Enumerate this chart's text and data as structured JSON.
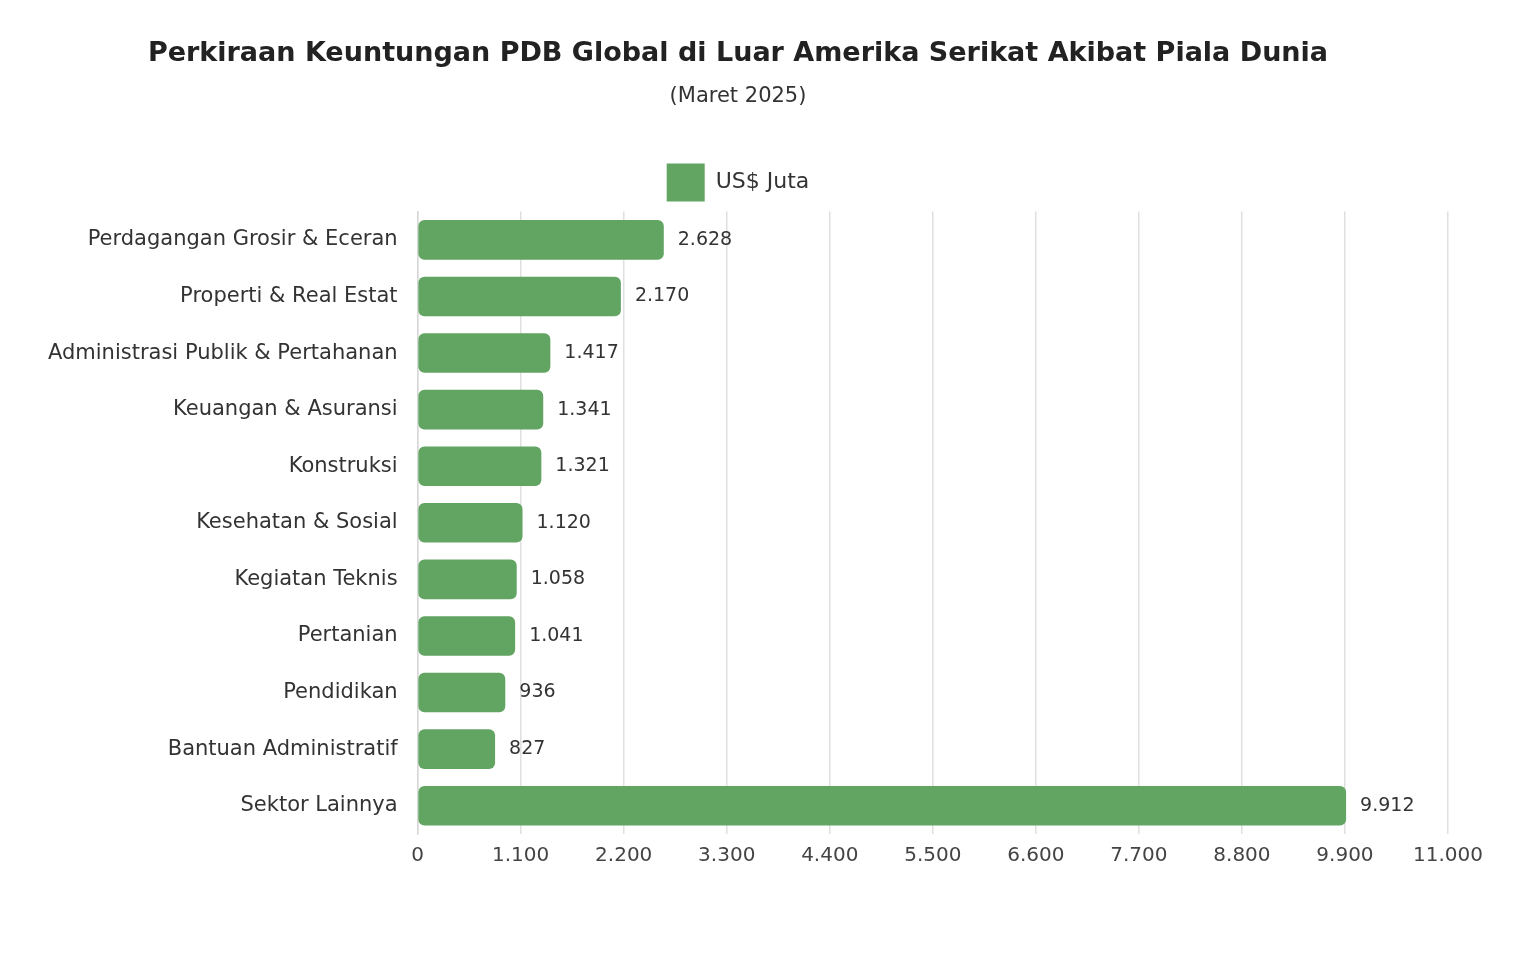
{
  "chart_data": {
    "type": "bar",
    "orientation": "horizontal",
    "title": "Perkiraan Keuntungan PDB Global di Luar Amerika Serikat Akibat Piala Dunia",
    "subtitle": "(Maret 2025)",
    "categories": [
      "Perdagangan Grosir & Eceran",
      "Properti & Real Estat",
      "Administrasi Publik & Pertahanan",
      "Keuangan & Asuransi",
      "Konstruksi",
      "Kesehatan & Sosial",
      "Kegiatan Teknis",
      "Pertanian",
      "Pendidikan",
      "Bantuan Administratif",
      "Sektor Lainnya"
    ],
    "series": [
      {
        "name": "US$ Juta",
        "color": "#62a562",
        "values": [
          2628,
          2170,
          1417,
          1341,
          1321,
          1120,
          1058,
          1041,
          936,
          827,
          9912
        ],
        "value_labels": [
          "2.628",
          "2.170",
          "1.417",
          "1.341",
          "1.321",
          "1.120",
          "1.058",
          "1.041",
          "936",
          "827",
          "9.912"
        ]
      }
    ],
    "xlim": [
      0,
      11000
    ],
    "xticks": [
      0,
      {
        "value": 1100,
        "label": "1.100"
      },
      {
        "value": 2200,
        "label": "2.200"
      },
      {
        "value": 3300,
        "label": "3.300"
      },
      {
        "value": 4400,
        "label": "4.400"
      },
      {
        "value": 5500,
        "label": "5.500"
      },
      {
        "value": 6600,
        "label": "6.600"
      },
      {
        "value": 7700,
        "label": "7.700"
      },
      {
        "value": 8800,
        "label": "8.800"
      },
      {
        "value": 9900,
        "label": "9.900"
      },
      {
        "value": 11000,
        "label": "11.000"
      }
    ],
    "grid": "x",
    "legend": "top"
  }
}
